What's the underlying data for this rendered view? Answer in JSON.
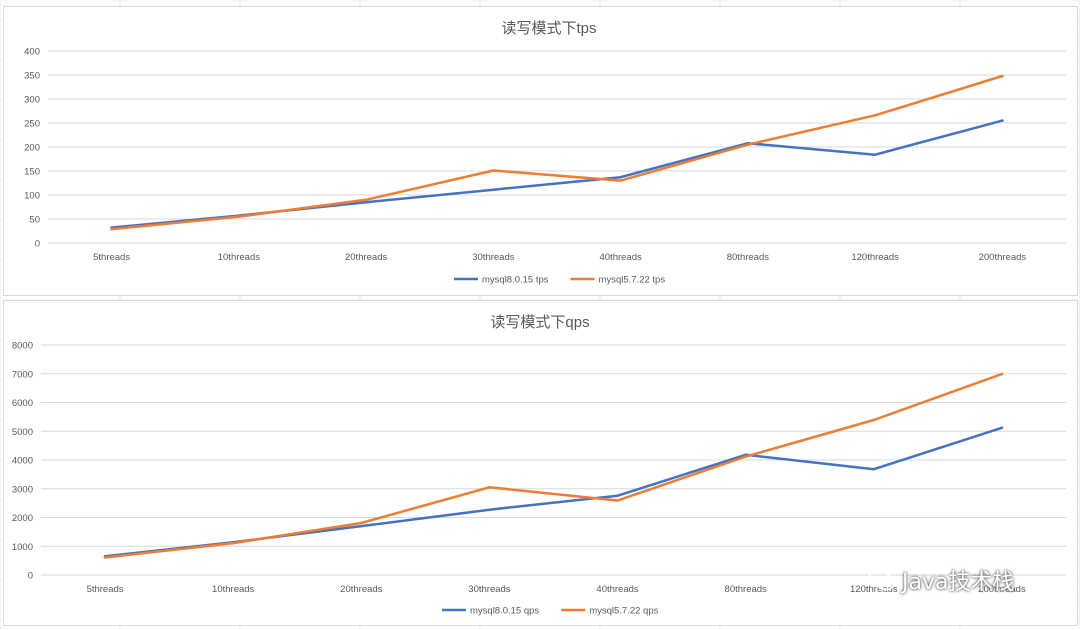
{
  "watermark": {
    "text": "Java技术栈",
    "icon": "wechat-icon"
  },
  "chart_data": [
    {
      "type": "line",
      "title": "读写模式下tps",
      "categories": [
        "5threads",
        "10threads",
        "20threads",
        "30threads",
        "40threads",
        "80threads",
        "120threads",
        "200threads"
      ],
      "ylim": [
        0,
        400
      ],
      "yticks": [
        0,
        50,
        100,
        150,
        200,
        250,
        300,
        350,
        400
      ],
      "grid": true,
      "legend": "bottom",
      "series": [
        {
          "name": "mysql8.0.15 tps",
          "color": "#4472c4",
          "values": [
            32,
            57,
            85,
            111,
            137,
            208,
            184,
            255
          ]
        },
        {
          "name": "mysql5.7.22 tps",
          "color": "#ed7d31",
          "values": [
            29,
            55,
            90,
            151,
            130,
            205,
            266,
            348
          ]
        }
      ]
    },
    {
      "type": "line",
      "title": "读写模式下qps",
      "categories": [
        "5threads",
        "10threads",
        "20threads",
        "30threads",
        "40threads",
        "80threads",
        "120threads",
        "200threads"
      ],
      "ylim": [
        0,
        8000
      ],
      "yticks": [
        0,
        1000,
        2000,
        3000,
        4000,
        5000,
        6000,
        7000,
        8000
      ],
      "grid": true,
      "legend": "bottom",
      "series": [
        {
          "name": "mysql8.0.15 qps",
          "color": "#4472c4",
          "values": [
            650,
            1140,
            1700,
            2270,
            2760,
            4180,
            3680,
            5120
          ]
        },
        {
          "name": "mysql5.7.22 qps",
          "color": "#ed7d31",
          "values": [
            610,
            1110,
            1810,
            3050,
            2590,
            4120,
            5390,
            6990
          ]
        }
      ]
    }
  ]
}
